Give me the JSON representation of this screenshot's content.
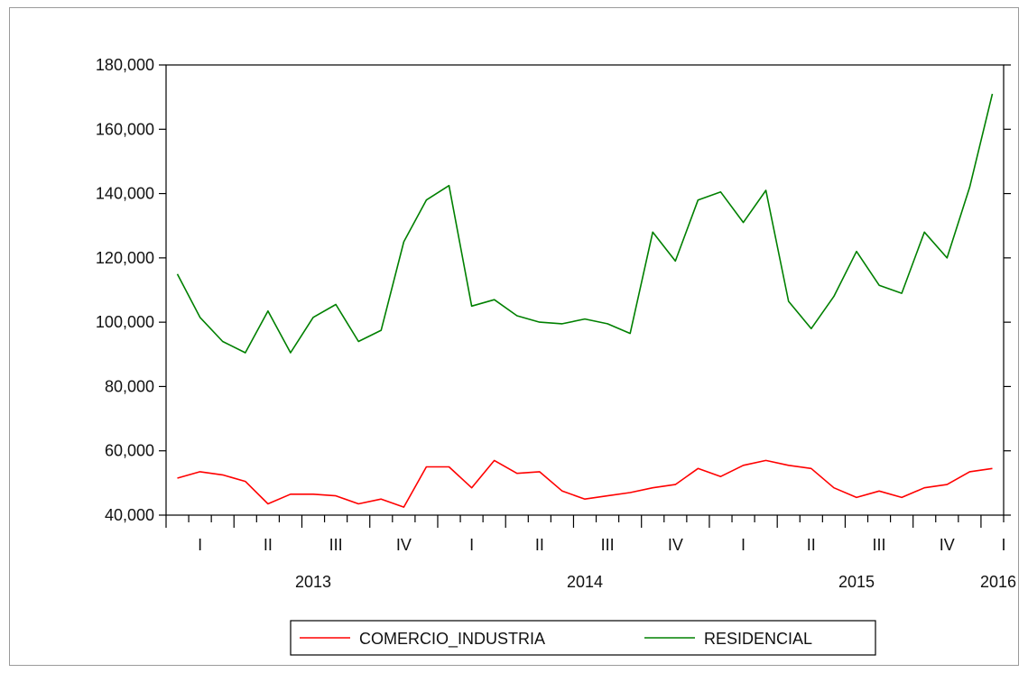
{
  "chart_data": {
    "type": "line",
    "title": "",
    "xlabel": "",
    "ylabel": "",
    "ylim": [
      40000,
      180000
    ],
    "y_ticks": [
      40000,
      60000,
      80000,
      100000,
      120000,
      140000,
      160000,
      180000
    ],
    "y_tick_labels": [
      "40,000",
      "60,000",
      "80,000",
      "100,000",
      "120,000",
      "140,000",
      "160,000",
      "180,000"
    ],
    "grid": false,
    "legend_position": "bottom-center",
    "x_start": "2013-01",
    "x_end": "2016-01",
    "quarter_labels": [
      {
        "label": "I",
        "month": 1.5
      },
      {
        "label": "II",
        "month": 4.5
      },
      {
        "label": "III",
        "month": 7.5
      },
      {
        "label": "IV",
        "month": 10.5
      },
      {
        "label": "I",
        "month": 13.5
      },
      {
        "label": "II",
        "month": 16.5
      },
      {
        "label": "III",
        "month": 19.5
      },
      {
        "label": "IV",
        "month": 22.5
      },
      {
        "label": "I",
        "month": 25.5
      },
      {
        "label": "II",
        "month": 28.5
      },
      {
        "label": "III",
        "month": 31.5
      },
      {
        "label": "IV",
        "month": 34.5
      },
      {
        "label": "I",
        "month": 37
      }
    ],
    "year_labels": [
      {
        "label": "2013",
        "month": 6.5
      },
      {
        "label": "2014",
        "month": 18.5
      },
      {
        "label": "2015",
        "month": 30.5
      },
      {
        "label": "2016",
        "month": 37
      }
    ],
    "series": [
      {
        "name": "COMERCIO_INDUSTRIA",
        "color": "#ff0000",
        "values": [
          51500,
          53500,
          52500,
          50500,
          43500,
          46500,
          46500,
          46000,
          43500,
          45000,
          42500,
          55000,
          55000,
          48500,
          57000,
          53000,
          53500,
          47500,
          45000,
          46000,
          47000,
          48500,
          49500,
          54500,
          52000,
          55500,
          57000,
          55500,
          54500,
          48500,
          45500,
          47500,
          45500,
          48500,
          49500,
          53500,
          54500
        ]
      },
      {
        "name": "RESIDENCIAL",
        "color": "#008000",
        "values": [
          115000,
          101500,
          94000,
          90500,
          103500,
          90500,
          101500,
          105500,
          94000,
          97500,
          125000,
          138000,
          142500,
          105000,
          107000,
          102000,
          100000,
          99500,
          101000,
          99500,
          96500,
          128000,
          119000,
          138000,
          140500,
          131000,
          141000,
          106500,
          98000,
          108000,
          122000,
          111500,
          109000,
          128000,
          120000,
          142000,
          171000
        ]
      }
    ]
  }
}
